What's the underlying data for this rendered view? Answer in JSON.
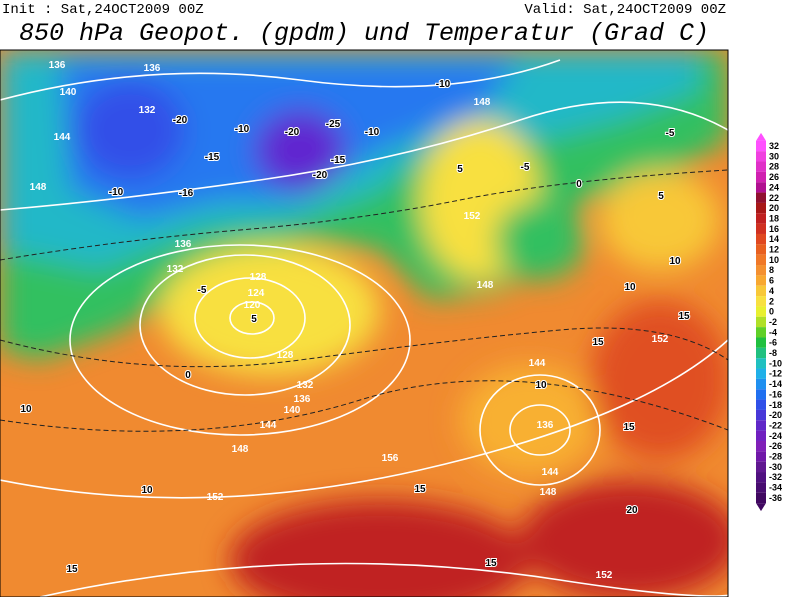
{
  "header": {
    "init": "Init : Sat,24OCT2009 00Z",
    "valid": "Valid: Sat,24OCT2009 00Z",
    "title": "850 hPa Geopot. (gpdm) und Temperatur (Grad C)"
  },
  "colorbar": {
    "ticks": [
      32,
      30,
      28,
      26,
      24,
      22,
      20,
      18,
      16,
      14,
      12,
      10,
      8,
      6,
      4,
      2,
      0,
      -2,
      -4,
      -6,
      -8,
      -10,
      -12,
      -14,
      -16,
      -18,
      -20,
      -22,
      -24,
      -26,
      -28,
      -30,
      -32,
      -34,
      -36
    ],
    "colors": [
      "#ff50ff",
      "#f040e0",
      "#e030c8",
      "#d020b0",
      "#b01090",
      "#901030",
      "#a81818",
      "#c02020",
      "#d03020",
      "#e04820",
      "#e86020",
      "#f07828",
      "#f49030",
      "#f8a830",
      "#f8c838",
      "#f8e040",
      "#e8f030",
      "#b0e028",
      "#60d028",
      "#20c040",
      "#20c080",
      "#20c0c0",
      "#20b0e8",
      "#2090f0",
      "#2070f0",
      "#3050e8",
      "#4838d8",
      "#6028c8",
      "#7020c0",
      "#8020b8",
      "#7018a8",
      "#601890",
      "#501080",
      "#480c70",
      "#400860"
    ]
  },
  "map": {
    "geopotential_labels": [
      136,
      136,
      140,
      132,
      144,
      148,
      136,
      132,
      128,
      124,
      120,
      128,
      132,
      136,
      140,
      144,
      148,
      152,
      148,
      152,
      148,
      144,
      136,
      144,
      148,
      152,
      152,
      156
    ],
    "temperature_labels": [
      -20,
      -16,
      -10,
      -15,
      -20,
      -25,
      -15,
      -20,
      -10,
      -10,
      -10,
      -5,
      -5,
      5,
      0,
      5,
      10,
      10,
      15,
      15,
      15,
      15,
      15,
      15,
      10,
      10,
      20,
      10,
      5,
      0,
      -5
    ]
  }
}
